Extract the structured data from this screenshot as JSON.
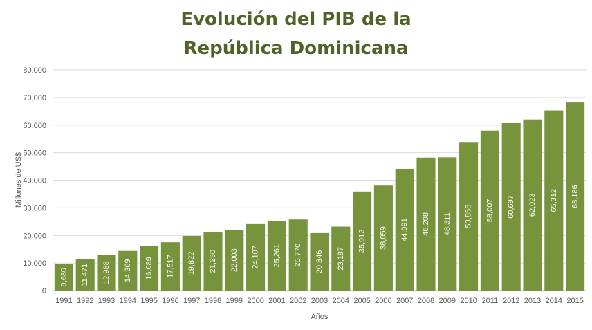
{
  "chart_data": {
    "type": "bar",
    "title_lines": [
      "Evolución del PIB de la",
      "República Dominicana"
    ],
    "xlabel": "Años",
    "ylabel": "Millones de US$",
    "ylim": [
      0,
      80000
    ],
    "yticks": [
      "0",
      "10,000",
      "20,000",
      "30,000",
      "40,000",
      "50,000",
      "60,000",
      "70,000",
      "80,000"
    ],
    "grid": true,
    "bar_color": "#77933c",
    "title_color": "#4f6228",
    "categories": [
      "1991",
      "1992",
      "1993",
      "1994",
      "1995",
      "1996",
      "1997",
      "1998",
      "1999",
      "2000",
      "2001",
      "2002",
      "2003",
      "2004",
      "2005",
      "2006",
      "2007",
      "2008",
      "2009",
      "2010",
      "2011",
      "2012",
      "2013",
      "2014",
      "2015"
    ],
    "values": [
      9680,
      11471,
      12988,
      14369,
      16089,
      17517,
      19822,
      21230,
      22003,
      24107,
      25261,
      25770,
      20846,
      23187,
      35912,
      38059,
      44091,
      48208,
      48311,
      53856,
      58007,
      60697,
      62023,
      65312,
      68186
    ],
    "data_labels": [
      "9,680",
      "11,471",
      "12,988",
      "14,369",
      "16,089",
      "17,517",
      "19,822",
      "21,230",
      "22,003",
      "24,107",
      "25,261",
      "25,770",
      "20,846",
      "23,187",
      "35,912",
      "38,059",
      "44,091",
      "48,208",
      "48,311",
      "53,856",
      "58,007",
      "60,697",
      "62,023",
      "65,312",
      "68,186"
    ]
  }
}
